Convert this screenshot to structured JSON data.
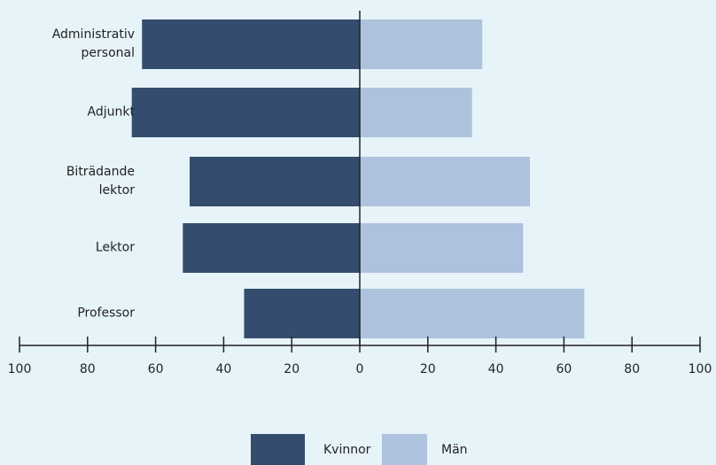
{
  "chart_data": {
    "type": "butterfly",
    "categories": [
      "Administrativ\npersonal",
      "Adjunkt",
      "Biträdande\nlektor",
      "Lektor",
      "Professor"
    ],
    "series": [
      {
        "name": "Kvinnor",
        "color": "#344d6e",
        "side": "left",
        "values": [
          64,
          67,
          50,
          52,
          34
        ]
      },
      {
        "name": "Män",
        "color": "#adc2dc",
        "side": "right",
        "values": [
          36,
          33,
          50,
          48,
          66
        ]
      }
    ],
    "xlim": [
      -100,
      100
    ],
    "xticks": [
      {
        "value": -100,
        "label": "100"
      },
      {
        "value": -80,
        "label": "80"
      },
      {
        "value": -60,
        "label": "60"
      },
      {
        "value": -40,
        "label": "40"
      },
      {
        "value": -20,
        "label": "20"
      },
      0,
      20,
      40,
      60,
      80,
      100
    ]
  }
}
